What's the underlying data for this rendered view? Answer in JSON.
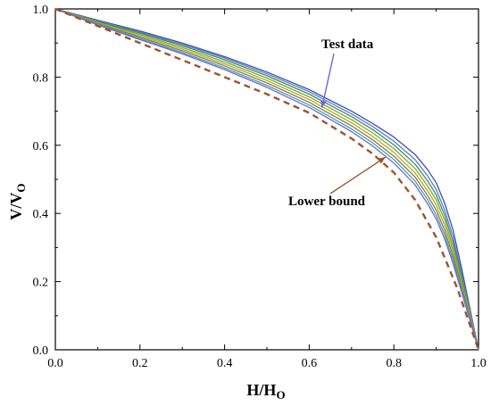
{
  "chart_data": {
    "type": "line",
    "xlabel": {
      "main": "H/H",
      "sub": "O"
    },
    "ylabel": {
      "main": "V/V",
      "sub": "O"
    },
    "xlim": [
      0.0,
      1.0
    ],
    "ylim": [
      0.0,
      1.0
    ],
    "xticks": [
      "0.0",
      "0.2",
      "0.4",
      "0.6",
      "0.8",
      "1.0"
    ],
    "yticks": [
      "0.0",
      "0.2",
      "0.4",
      "0.6",
      "0.8",
      "1.0"
    ],
    "grid": false,
    "legend": "none",
    "annotations": [
      {
        "text": "Test data",
        "target": [
          0.63,
          0.71
        ],
        "color": "#6a6ad6"
      },
      {
        "text": "Lower bound",
        "target": [
          0.78,
          0.565
        ],
        "color": "#a0522d"
      }
    ],
    "series": [
      {
        "color": "#3a4fb0",
        "x": [
          0,
          0.1,
          0.2,
          0.3,
          0.4,
          0.5,
          0.6,
          0.7,
          0.75,
          0.8,
          0.85,
          0.88,
          0.9,
          0.92,
          0.94,
          0.96,
          0.98,
          1.0
        ],
        "y": [
          1.0,
          0.967,
          0.935,
          0.9,
          0.86,
          0.815,
          0.763,
          0.7,
          0.664,
          0.624,
          0.573,
          0.528,
          0.49,
          0.43,
          0.35,
          0.24,
          0.12,
          0.0
        ]
      },
      {
        "color": "#5e7bd0",
        "x": [
          0,
          0.1,
          0.2,
          0.3,
          0.4,
          0.5,
          0.6,
          0.7,
          0.75,
          0.8,
          0.85,
          0.88,
          0.9,
          0.92,
          0.94,
          0.96,
          0.98,
          1.0
        ],
        "y": [
          1.0,
          0.965,
          0.932,
          0.896,
          0.856,
          0.81,
          0.757,
          0.692,
          0.655,
          0.612,
          0.558,
          0.51,
          0.47,
          0.41,
          0.33,
          0.225,
          0.115,
          0.0
        ]
      },
      {
        "color": "#3f8f56",
        "x": [
          0,
          0.1,
          0.2,
          0.3,
          0.4,
          0.5,
          0.6,
          0.7,
          0.75,
          0.8,
          0.85,
          0.88,
          0.9,
          0.92,
          0.94,
          0.96,
          0.98,
          1.0
        ],
        "y": [
          1.0,
          0.963,
          0.929,
          0.892,
          0.851,
          0.804,
          0.75,
          0.684,
          0.646,
          0.601,
          0.545,
          0.495,
          0.455,
          0.395,
          0.315,
          0.215,
          0.11,
          0.0
        ]
      },
      {
        "color": "#7aa83c",
        "x": [
          0,
          0.1,
          0.2,
          0.3,
          0.4,
          0.5,
          0.6,
          0.7,
          0.75,
          0.8,
          0.85,
          0.88,
          0.9,
          0.92,
          0.94,
          0.96,
          0.98,
          1.0
        ],
        "y": [
          1.0,
          0.961,
          0.925,
          0.887,
          0.845,
          0.797,
          0.742,
          0.675,
          0.636,
          0.59,
          0.532,
          0.48,
          0.44,
          0.38,
          0.3,
          0.205,
          0.105,
          0.0
        ]
      },
      {
        "color": "#b5a830",
        "x": [
          0,
          0.1,
          0.2,
          0.3,
          0.4,
          0.5,
          0.6,
          0.7,
          0.75,
          0.8,
          0.85,
          0.88,
          0.9,
          0.92,
          0.94,
          0.96,
          0.98,
          1.0
        ],
        "y": [
          1.0,
          0.959,
          0.921,
          0.882,
          0.839,
          0.79,
          0.734,
          0.666,
          0.626,
          0.579,
          0.519,
          0.466,
          0.425,
          0.365,
          0.288,
          0.196,
          0.1,
          0.0
        ]
      },
      {
        "color": "#8f7a4a",
        "x": [
          0,
          0.1,
          0.2,
          0.3,
          0.4,
          0.5,
          0.6,
          0.7,
          0.75,
          0.8,
          0.85,
          0.88,
          0.9,
          0.92,
          0.94,
          0.96,
          0.98,
          1.0
        ],
        "y": [
          1.0,
          0.957,
          0.917,
          0.877,
          0.833,
          0.783,
          0.726,
          0.657,
          0.616,
          0.568,
          0.507,
          0.452,
          0.41,
          0.35,
          0.275,
          0.187,
          0.095,
          0.0
        ]
      },
      {
        "color": "#4aa0a8",
        "x": [
          0,
          0.1,
          0.2,
          0.3,
          0.4,
          0.5,
          0.6,
          0.7,
          0.75,
          0.8,
          0.85,
          0.88,
          0.9,
          0.92,
          0.94,
          0.96,
          0.98,
          1.0
        ],
        "y": [
          1.0,
          0.955,
          0.913,
          0.872,
          0.827,
          0.776,
          0.718,
          0.648,
          0.607,
          0.558,
          0.495,
          0.44,
          0.396,
          0.337,
          0.263,
          0.178,
          0.09,
          0.0
        ]
      },
      {
        "color": "#6a6ad6",
        "x": [
          0,
          0.1,
          0.2,
          0.3,
          0.4,
          0.5,
          0.6,
          0.7,
          0.75,
          0.8,
          0.85,
          0.88,
          0.9,
          0.92,
          0.94,
          0.96,
          0.98,
          1.0
        ],
        "y": [
          1.0,
          0.953,
          0.91,
          0.868,
          0.822,
          0.77,
          0.711,
          0.64,
          0.598,
          0.548,
          0.484,
          0.428,
          0.384,
          0.325,
          0.252,
          0.17,
          0.086,
          0.0
        ]
      },
      {
        "color": "#a0522d",
        "dashed": true,
        "x": [
          0,
          0.1,
          0.2,
          0.3,
          0.4,
          0.5,
          0.6,
          0.7,
          0.75,
          0.8,
          0.85,
          0.9,
          0.95,
          1.0
        ],
        "y": [
          1.0,
          0.95,
          0.9,
          0.85,
          0.8,
          0.75,
          0.695,
          0.62,
          0.575,
          0.52,
          0.44,
          0.33,
          0.18,
          0.0
        ]
      }
    ]
  }
}
